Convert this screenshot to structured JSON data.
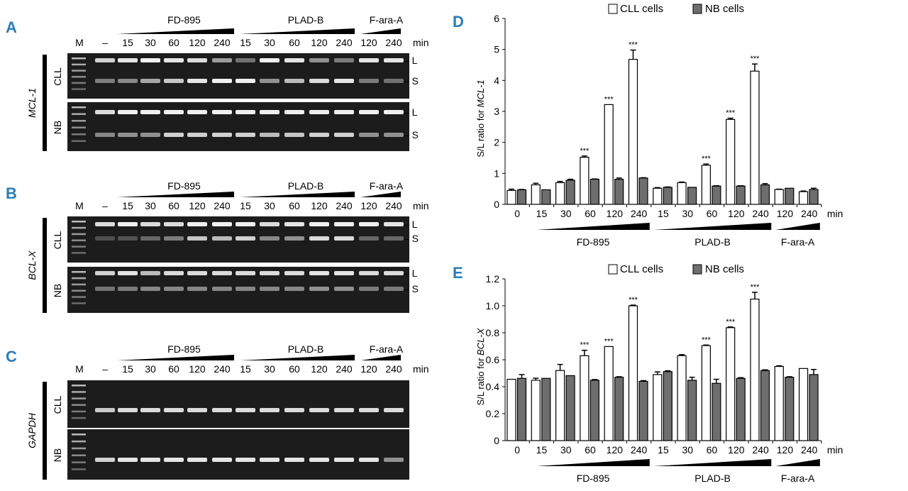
{
  "panels": {
    "A": "A",
    "B": "B",
    "C": "C",
    "D": "D",
    "E": "E"
  },
  "gel_common": {
    "lane_labels": [
      "M",
      "–",
      "15",
      "30",
      "60",
      "120",
      "240",
      "15",
      "30",
      "60",
      "120",
      "240",
      "120",
      "240"
    ],
    "unit": "min",
    "groups": [
      "FD-895",
      "PLAD-B",
      "F-ara-A"
    ],
    "rows": [
      "CLL",
      "NB"
    ],
    "band_long": "L",
    "band_short": "S"
  },
  "gels": [
    {
      "panel": "A",
      "gene": "MCL-1",
      "show_ls": true,
      "cll": {
        "L": [
          0.9,
          0.95,
          0.9,
          0.85,
          0.55,
          0.35,
          0.95,
          0.9,
          0.5,
          0.4,
          0.9,
          0.9
        ],
        "S": [
          0.45,
          0.6,
          0.75,
          0.9,
          0.95,
          0.95,
          0.5,
          0.7,
          0.85,
          0.9,
          0.4,
          0.35
        ]
      },
      "nb": {
        "L": [
          0.95,
          0.95,
          0.95,
          0.95,
          0.95,
          0.95,
          0.95,
          0.95,
          0.95,
          0.95,
          0.95,
          0.95
        ],
        "S": [
          0.5,
          0.5,
          0.8,
          0.8,
          0.8,
          0.8,
          0.7,
          0.75,
          0.8,
          0.8,
          0.5,
          0.5
        ]
      }
    },
    {
      "panel": "B",
      "gene": "BCL-X",
      "show_ls": true,
      "cll": {
        "L": [
          0.95,
          0.85,
          0.85,
          0.95,
          0.95,
          0.95,
          0.85,
          0.9,
          0.95,
          0.95,
          0.95,
          0.9
        ],
        "S": [
          0.2,
          0.3,
          0.4,
          0.75,
          0.7,
          0.8,
          0.45,
          0.5,
          0.85,
          0.85,
          0.3,
          0.3
        ]
      },
      "nb": {
        "L": [
          0.9,
          0.7,
          0.85,
          0.85,
          0.85,
          0.85,
          0.85,
          0.85,
          0.9,
          0.9,
          0.85,
          0.85
        ],
        "S": [
          0.4,
          0.45,
          0.45,
          0.45,
          0.45,
          0.45,
          0.45,
          0.45,
          0.5,
          0.5,
          0.4,
          0.4
        ]
      }
    },
    {
      "panel": "C",
      "gene": "GAPDH",
      "show_ls": false,
      "cll": {
        "L": [
          0.85,
          0.85,
          0.85,
          0.85,
          0.85,
          0.85,
          0.85,
          0.85,
          0.85,
          0.85,
          0.85,
          0.85
        ]
      },
      "nb": {
        "L": [
          0.9,
          0.9,
          0.9,
          0.9,
          0.9,
          0.9,
          0.9,
          0.9,
          0.9,
          0.9,
          0.9,
          0.5
        ]
      }
    }
  ],
  "colors": {
    "cll": "#ffffff",
    "nb": "#6e6e6e",
    "panel_letter": "#2a7db8"
  },
  "chart_data": [
    {
      "type": "bar",
      "panel": "D",
      "ylabel_prefix": "S/L ratio for ",
      "ylabel_gene": "MCL-1",
      "ylim": [
        0,
        6
      ],
      "yticks": [
        "0",
        "1",
        "2",
        "3",
        "4",
        "5",
        "6"
      ],
      "categories": [
        "0",
        "15",
        "30",
        "60",
        "120",
        "240",
        "15",
        "30",
        "60",
        "120",
        "240",
        "120",
        "240"
      ],
      "xunit": "min",
      "group_labels": [
        "FD-895",
        "PLAD-B",
        "F-ara-A"
      ],
      "legend": [
        "CLL cells",
        "NB cells"
      ],
      "series": [
        {
          "name": "CLL cells",
          "values": [
            0.45,
            0.63,
            0.7,
            1.52,
            3.22,
            4.68,
            0.52,
            0.7,
            1.26,
            2.74,
            4.3,
            0.48,
            0.41
          ],
          "errors": [
            0.04,
            0.05,
            0.04,
            0.04,
            0.0,
            0.3,
            0.02,
            0.02,
            0.04,
            0.04,
            0.23,
            0.01,
            0.02
          ]
        },
        {
          "name": "NB cells",
          "values": [
            0.47,
            0.47,
            0.78,
            0.81,
            0.81,
            0.85,
            0.55,
            0.55,
            0.59,
            0.59,
            0.63,
            0.52,
            0.48
          ],
          "errors": [
            0.01,
            0.0,
            0.03,
            0.01,
            0.04,
            0.01,
            0.01,
            0.0,
            0.01,
            0.01,
            0.04,
            0.0,
            0.04
          ]
        }
      ],
      "significance": [
        "",
        "",
        "",
        "***",
        "***",
        "***",
        "",
        "",
        "***",
        "***",
        "***",
        "",
        ""
      ]
    },
    {
      "type": "bar",
      "panel": "E",
      "ylabel_prefix": "S/L ratio for ",
      "ylabel_gene": "BCL-X",
      "ylim": [
        0,
        1.2
      ],
      "yticks": [
        "0",
        "0.2",
        "0.4",
        "0.6",
        "0.8",
        "1.0",
        "1.2"
      ],
      "categories": [
        "0",
        "15",
        "30",
        "60",
        "120",
        "240",
        "15",
        "30",
        "60",
        "120",
        "240",
        "120",
        "240"
      ],
      "xunit": "min",
      "group_labels": [
        "FD-895",
        "PLAD-B",
        "F-ara-A"
      ],
      "legend": [
        "CLL cells",
        "NB cells"
      ],
      "series": [
        {
          "name": "CLL cells",
          "values": [
            0.455,
            0.448,
            0.52,
            0.63,
            0.698,
            1.0,
            0.49,
            0.63,
            0.705,
            0.838,
            1.05,
            0.55,
            0.535
          ],
          "errors": [
            0.0,
            0.015,
            0.045,
            0.04,
            0.0,
            0.005,
            0.02,
            0.008,
            0.004,
            0.005,
            0.05,
            0.005,
            0.0
          ]
        },
        {
          "name": "NB cells",
          "values": [
            0.462,
            0.462,
            0.482,
            0.448,
            0.47,
            0.44,
            0.512,
            0.448,
            0.425,
            0.462,
            0.52,
            0.47,
            0.49
          ],
          "errors": [
            0.028,
            0.0,
            0.0,
            0.005,
            0.004,
            0.005,
            0.006,
            0.022,
            0.03,
            0.005,
            0.005,
            0.004,
            0.038
          ]
        }
      ],
      "significance": [
        "",
        "",
        "",
        "***",
        "***",
        "***",
        "",
        "",
        "***",
        "***",
        "***",
        "",
        ""
      ]
    }
  ]
}
